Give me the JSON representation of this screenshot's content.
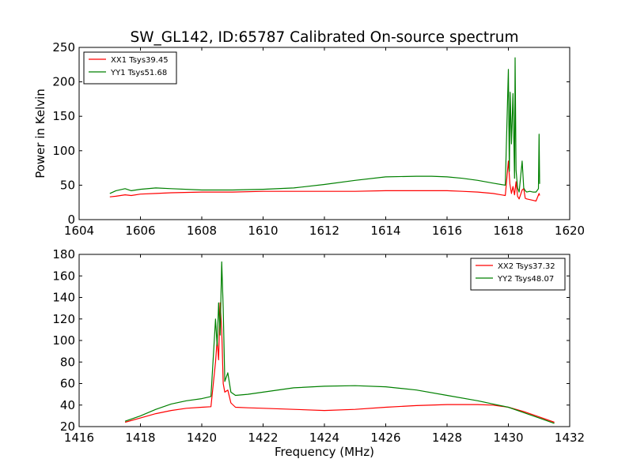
{
  "figure": {
    "title": "SW_GL142, ID:65787 Calibrated On-source spectrum"
  },
  "chart_data": [
    {
      "type": "line",
      "title": "SW_GL142, ID:65787 Calibrated On-source spectrum",
      "xlabel": "",
      "ylabel": "Power in Kelvin",
      "xlim": [
        1604,
        1620
      ],
      "ylim": [
        0,
        250
      ],
      "xticks": [
        "1604",
        "1606",
        "1608",
        "1610",
        "1612",
        "1614",
        "1616",
        "1618",
        "1620"
      ],
      "yticks": [
        "0",
        "50",
        "100",
        "150",
        "200",
        "250"
      ],
      "legend_position": "top-left",
      "grid": false,
      "series": [
        {
          "name": "XX1 Tsys39.45",
          "color": "#ff0000",
          "x": [
            1605.0,
            1605.2,
            1605.5,
            1605.7,
            1606.0,
            1606.5,
            1607.0,
            1608.0,
            1609.0,
            1610.0,
            1611.0,
            1612.0,
            1613.0,
            1614.0,
            1615.0,
            1616.0,
            1616.5,
            1617.0,
            1617.5,
            1617.9,
            1618.0,
            1618.05,
            1618.1,
            1618.15,
            1618.2,
            1618.25,
            1618.3,
            1618.35,
            1618.45,
            1618.5,
            1618.55,
            1618.6,
            1618.7,
            1618.8,
            1618.9,
            1619.0,
            1619.02
          ],
          "y": [
            33,
            34,
            36,
            35,
            37,
            38,
            39,
            40,
            40,
            41,
            41,
            41,
            41,
            42,
            42,
            42,
            41,
            40,
            38,
            35,
            85,
            52,
            38,
            48,
            36,
            55,
            34,
            30,
            43,
            45,
            31,
            30,
            29,
            28,
            27,
            38,
            35
          ]
        },
        {
          "name": "YY1 Tsys51.68",
          "color": "#008000",
          "x": [
            1605.0,
            1605.2,
            1605.5,
            1605.7,
            1606.0,
            1606.5,
            1607.0,
            1608.0,
            1609.0,
            1610.0,
            1611.0,
            1612.0,
            1613.0,
            1614.0,
            1615.0,
            1615.5,
            1616.0,
            1616.5,
            1617.0,
            1617.5,
            1617.9,
            1618.0,
            1618.03,
            1618.06,
            1618.1,
            1618.15,
            1618.2,
            1618.22,
            1618.25,
            1618.3,
            1618.35,
            1618.45,
            1618.5,
            1618.55,
            1618.6,
            1618.7,
            1618.8,
            1618.9,
            1618.98,
            1619.0,
            1619.02
          ],
          "y": [
            38,
            42,
            45,
            42,
            44,
            46,
            45,
            43,
            43,
            44,
            46,
            51,
            57,
            62,
            63,
            63,
            62,
            60,
            57,
            53,
            50,
            218,
            70,
            185,
            110,
            183,
            60,
            235,
            72,
            46,
            40,
            85,
            46,
            42,
            40,
            41,
            40,
            40,
            45,
            124,
            52
          ]
        }
      ]
    },
    {
      "type": "line",
      "title": "",
      "xlabel": "Frequency (MHz)",
      "ylabel": "",
      "xlim": [
        1416,
        1432
      ],
      "ylim": [
        20,
        180
      ],
      "xticks": [
        "1416",
        "1418",
        "1420",
        "1422",
        "1424",
        "1426",
        "1428",
        "1430",
        "1432"
      ],
      "yticks": [
        "20",
        "40",
        "60",
        "80",
        "100",
        "120",
        "140",
        "160",
        "180"
      ],
      "legend_position": "top-right",
      "grid": false,
      "series": [
        {
          "name": "XX2 Tsys37.32",
          "color": "#ff0000",
          "x": [
            1417.5,
            1418.0,
            1418.5,
            1419.0,
            1419.5,
            1420.0,
            1420.3,
            1420.45,
            1420.5,
            1420.55,
            1420.6,
            1420.65,
            1420.7,
            1420.75,
            1420.85,
            1420.95,
            1421.1,
            1421.5,
            1422.0,
            1423.0,
            1424.0,
            1425.0,
            1426.0,
            1427.0,
            1428.0,
            1429.0,
            1429.5,
            1430.0,
            1430.5,
            1431.0,
            1431.5
          ],
          "y": [
            24,
            28,
            32,
            35,
            37,
            38,
            38.5,
            80,
            100,
            82,
            135,
            110,
            60,
            52,
            54,
            42,
            38,
            37.5,
            37,
            36,
            35,
            36,
            38,
            39.5,
            40.5,
            40.5,
            40,
            38,
            34,
            29,
            24
          ]
        },
        {
          "name": "YY2 Tsys48.07",
          "color": "#008000",
          "x": [
            1417.5,
            1418.0,
            1418.5,
            1419.0,
            1419.5,
            1420.0,
            1420.3,
            1420.45,
            1420.5,
            1420.55,
            1420.6,
            1420.65,
            1420.7,
            1420.75,
            1420.85,
            1420.95,
            1421.1,
            1421.5,
            1422.0,
            1423.0,
            1424.0,
            1425.0,
            1426.0,
            1427.0,
            1428.0,
            1429.0,
            1429.5,
            1430.0,
            1430.5,
            1431.0,
            1431.5
          ],
          "y": [
            25,
            30,
            36,
            41,
            44,
            46,
            48,
            120,
            95,
            135,
            105,
            173,
            130,
            62,
            70,
            52,
            49,
            50,
            52,
            56,
            57.5,
            58,
            57,
            54,
            49,
            44,
            41,
            38,
            33,
            28,
            23
          ]
        }
      ]
    }
  ]
}
